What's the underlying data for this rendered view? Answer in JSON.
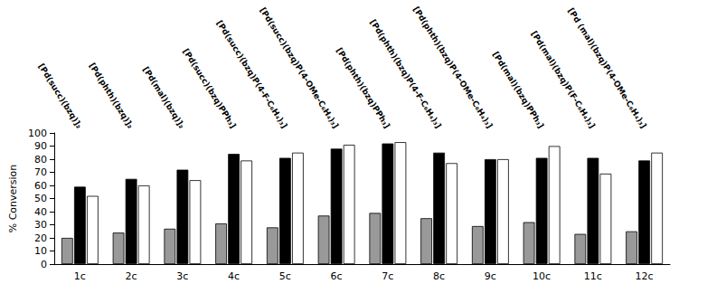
{
  "chart_data": {
    "type": "bar",
    "y_label": "% Conversion",
    "categories": [
      "1c",
      "2c",
      "3c",
      "4c",
      "5c",
      "6c",
      "7c",
      "8c",
      "9c",
      "10c",
      "11c",
      "12c"
    ],
    "annotations": [
      "[Pd(succ)(bzq)]₂",
      "[Pd(phth)(bzq)]₂",
      "[Pd(mal)(bzq)]₂",
      "[Pd(succ)(bzq)PPh₃]",
      "[Pd(succ)(bzq)P(4-F-C₆H₄)₃]",
      "[Pd(succ)(bzq)P(4-OMe-C₆H₄)₃]",
      "[Pd(phth)(bzq)PPh₃]",
      "[Pd(phth)(bzq)P(4-F-C₆H₄)₃]",
      "[Pd(phth)(bzq)P(4-OMe-C₆H₄)₃]",
      "[Pd(mal)(bzq)PPh₃]",
      "[Pd(mal)(bzq)P(F-C₆H₄)₃]",
      "[Pd (mal)(bzq)P(4-OMe-C₆H₄)₃]"
    ],
    "series": [
      {
        "color": "#999999",
        "values": [
          20,
          24,
          27,
          31,
          28,
          37,
          39,
          35,
          29,
          32,
          23,
          25
        ]
      },
      {
        "color": "#000000",
        "values": [
          59,
          65,
          72,
          84,
          81,
          88,
          92,
          85,
          80,
          81,
          81,
          79
        ]
      },
      {
        "color": "#ffffff",
        "values": [
          52,
          60,
          64,
          79,
          85,
          91,
          93,
          77,
          80,
          90,
          69,
          85
        ]
      }
    ],
    "ylim": [
      0,
      100
    ],
    "yticks": [
      0,
      10,
      20,
      30,
      40,
      50,
      60,
      70,
      80,
      90,
      100
    ],
    "grid": false
  }
}
